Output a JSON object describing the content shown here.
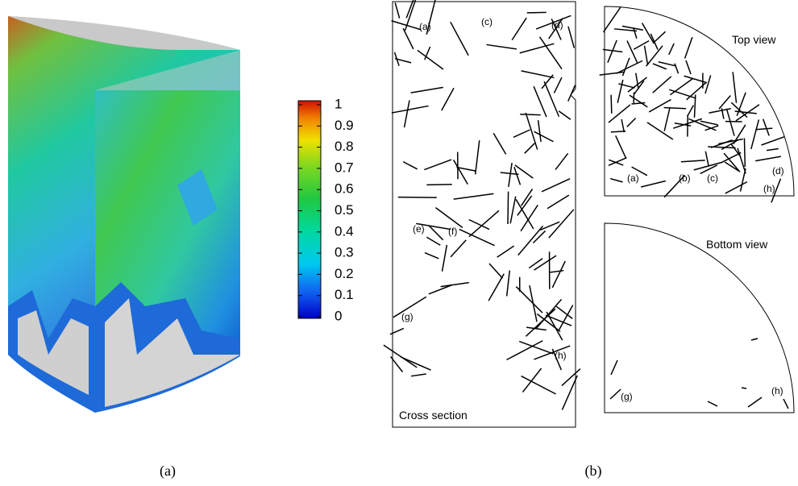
{
  "figure": {
    "panel_labels": [
      "(a)",
      "(b)"
    ],
    "colorbar": {
      "ticks": [
        0,
        0.1,
        0.2,
        0.3,
        0.4,
        0.5,
        0.6,
        0.7,
        0.8,
        0.9,
        1
      ]
    },
    "cross_section": {
      "title": "Cross section",
      "labels": [
        "(a)",
        "(c)",
        "(d)",
        "(e)",
        "(f)",
        "(g)",
        "(h)"
      ]
    },
    "top_view": {
      "title": "Top view",
      "labels": [
        "(a)",
        "(b)",
        "(c)",
        "(d)",
        "(h)"
      ]
    },
    "bottom_view": {
      "title": "Bottom view",
      "labels": [
        "(g)",
        "(h)"
      ]
    }
  }
}
